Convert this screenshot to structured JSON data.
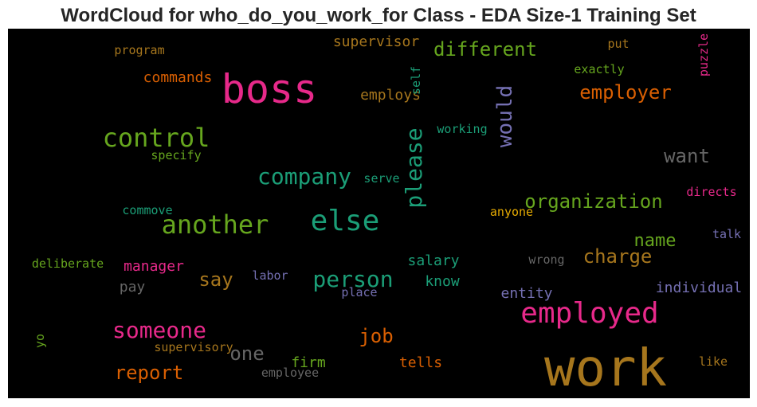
{
  "title": "WordCloud for who_do_you_work_for Class - EDA Size-1 Training Set",
  "chart_data": {
    "type": "wordcloud",
    "background": "#000000",
    "words": [
      {
        "text": "work",
        "weight": 1.0,
        "color": "#a6761d"
      },
      {
        "text": "boss",
        "weight": 0.8,
        "color": "#e7298a"
      },
      {
        "text": "employed",
        "weight": 0.6,
        "color": "#e7298a"
      },
      {
        "text": "else",
        "weight": 0.55,
        "color": "#1b9e77"
      },
      {
        "text": "another",
        "weight": 0.55,
        "color": "#66a61e"
      },
      {
        "text": "control",
        "weight": 0.52,
        "color": "#66a61e"
      },
      {
        "text": "someone",
        "weight": 0.5,
        "color": "#e7298a"
      },
      {
        "text": "please",
        "weight": 0.48,
        "color": "#1b9e77"
      },
      {
        "text": "would",
        "weight": 0.45,
        "color": "#7570b3"
      },
      {
        "text": "person",
        "weight": 0.45,
        "color": "#1b9e77"
      },
      {
        "text": "company",
        "weight": 0.45,
        "color": "#1b9e77"
      },
      {
        "text": "organization",
        "weight": 0.42,
        "color": "#66a61e"
      },
      {
        "text": "employer",
        "weight": 0.42,
        "color": "#d95f02"
      },
      {
        "text": "different",
        "weight": 0.4,
        "color": "#66a61e"
      },
      {
        "text": "want",
        "weight": 0.4,
        "color": "#666666"
      },
      {
        "text": "report",
        "weight": 0.4,
        "color": "#d95f02"
      },
      {
        "text": "job",
        "weight": 0.4,
        "color": "#d95f02"
      },
      {
        "text": "charge",
        "weight": 0.38,
        "color": "#a6761d"
      },
      {
        "text": "one",
        "weight": 0.38,
        "color": "#666666"
      },
      {
        "text": "say",
        "weight": 0.38,
        "color": "#a6761d"
      },
      {
        "text": "name",
        "weight": 0.35,
        "color": "#66a61e"
      },
      {
        "text": "supervisor",
        "weight": 0.32,
        "color": "#a6761d"
      },
      {
        "text": "commands",
        "weight": 0.32,
        "color": "#d95f02"
      },
      {
        "text": "employs",
        "weight": 0.32,
        "color": "#a6761d"
      },
      {
        "text": "individual",
        "weight": 0.32,
        "color": "#7570b3"
      },
      {
        "text": "entity",
        "weight": 0.32,
        "color": "#7570b3"
      },
      {
        "text": "salary",
        "weight": 0.3,
        "color": "#1b9e77"
      },
      {
        "text": "manager",
        "weight": 0.3,
        "color": "#e7298a"
      },
      {
        "text": "firm",
        "weight": 0.3,
        "color": "#66a61e"
      },
      {
        "text": "tells",
        "weight": 0.3,
        "color": "#d95f02"
      },
      {
        "text": "know",
        "weight": 0.3,
        "color": "#1b9e77"
      },
      {
        "text": "pay",
        "weight": 0.3,
        "color": "#666666"
      },
      {
        "text": "program",
        "weight": 0.25,
        "color": "#a6761d"
      },
      {
        "text": "exactly",
        "weight": 0.25,
        "color": "#66a61e"
      },
      {
        "text": "put",
        "weight": 0.25,
        "color": "#a6761d"
      },
      {
        "text": "puzzle",
        "weight": 0.25,
        "color": "#e7298a"
      },
      {
        "text": "self",
        "weight": 0.25,
        "color": "#1b9e77"
      },
      {
        "text": "working",
        "weight": 0.25,
        "color": "#1b9e77"
      },
      {
        "text": "specify",
        "weight": 0.25,
        "color": "#66a61e"
      },
      {
        "text": "serve",
        "weight": 0.25,
        "color": "#1b9e77"
      },
      {
        "text": "commove",
        "weight": 0.25,
        "color": "#1b9e77"
      },
      {
        "text": "directs",
        "weight": 0.25,
        "color": "#e7298a"
      },
      {
        "text": "anyone",
        "weight": 0.25,
        "color": "#e6ab02"
      },
      {
        "text": "talk",
        "weight": 0.25,
        "color": "#7570b3"
      },
      {
        "text": "deliberate",
        "weight": 0.25,
        "color": "#66a61e"
      },
      {
        "text": "wrong",
        "weight": 0.25,
        "color": "#666666"
      },
      {
        "text": "labor",
        "weight": 0.25,
        "color": "#7570b3"
      },
      {
        "text": "place",
        "weight": 0.25,
        "color": "#7570b3"
      },
      {
        "text": "yo",
        "weight": 0.25,
        "color": "#66a61e"
      },
      {
        "text": "supervisory",
        "weight": 0.25,
        "color": "#a6761d"
      },
      {
        "text": "employee",
        "weight": 0.25,
        "color": "#666666"
      },
      {
        "text": "like",
        "weight": 0.25,
        "color": "#a6761d"
      }
    ]
  }
}
